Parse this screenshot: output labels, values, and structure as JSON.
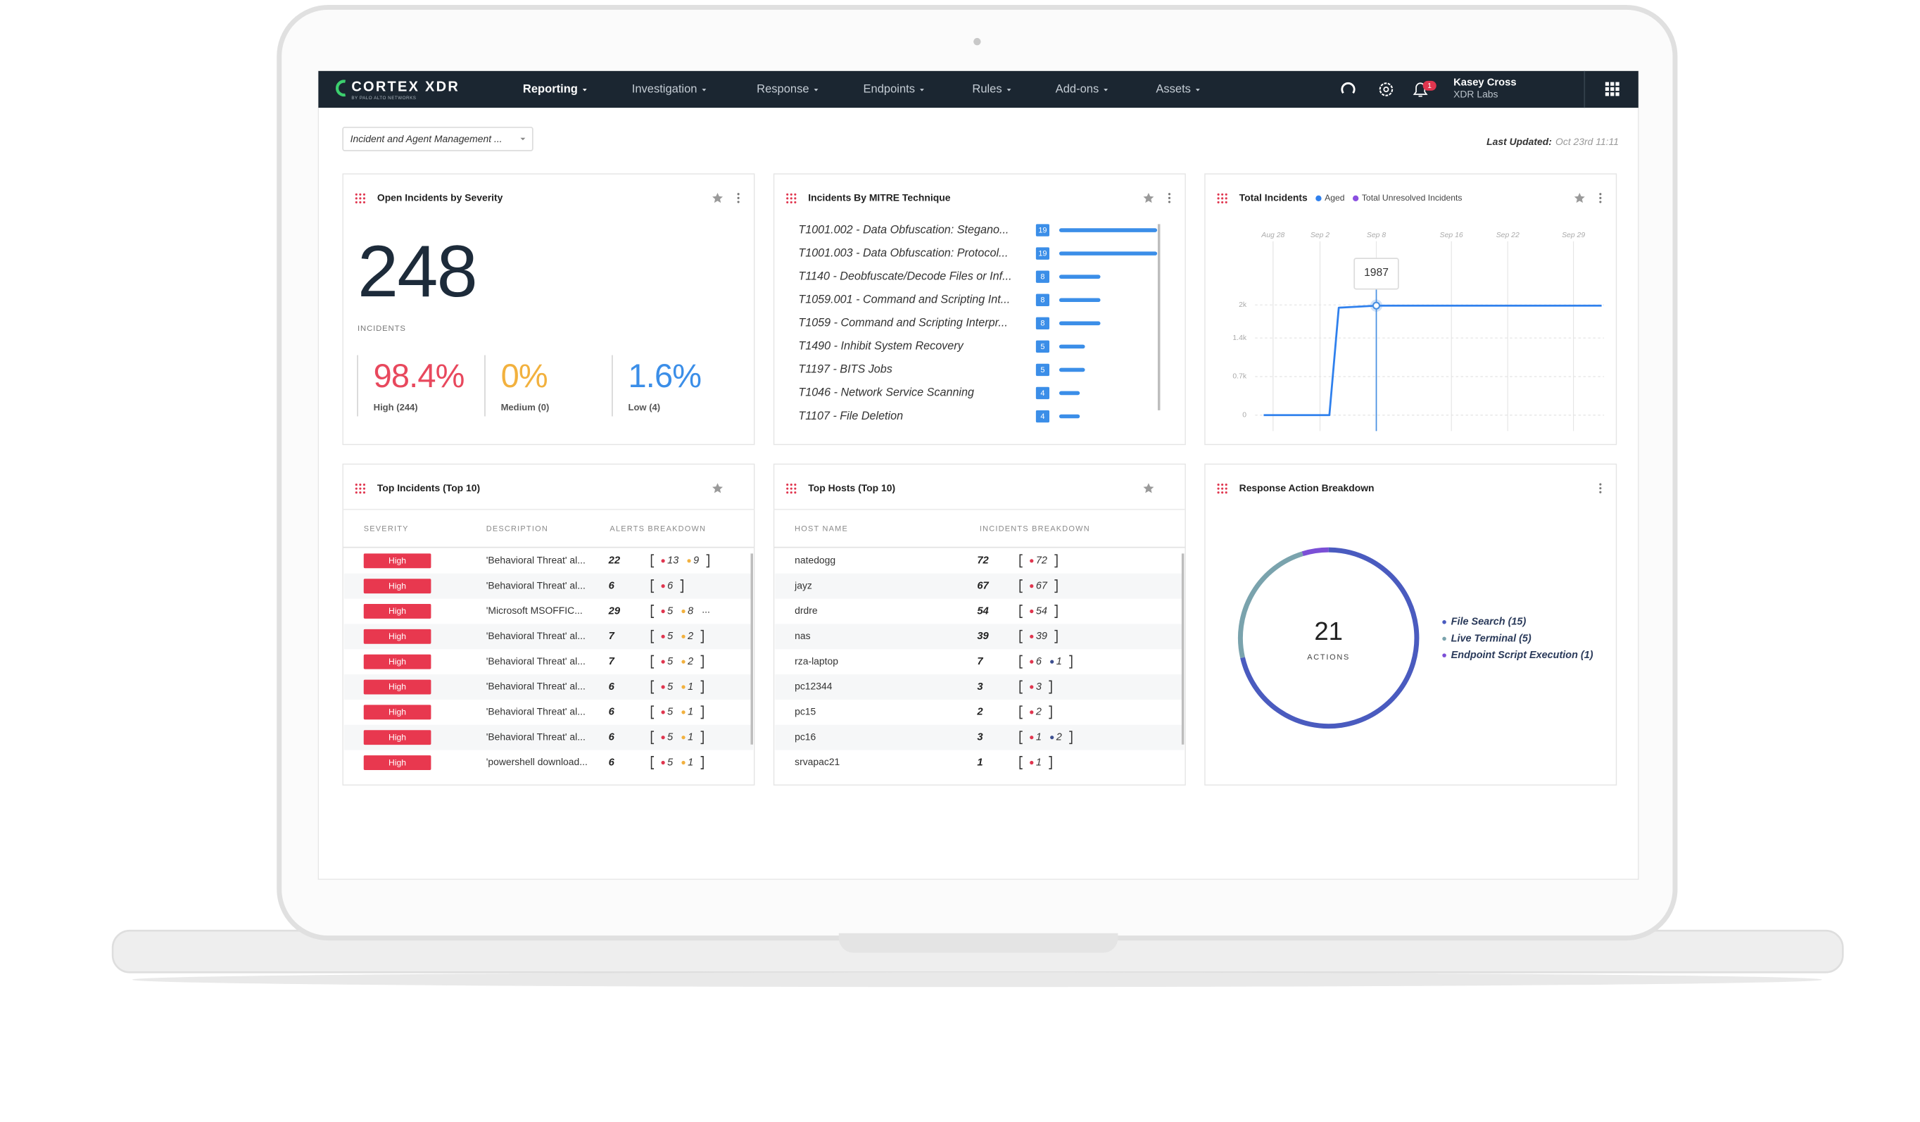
{
  "nav": {
    "brand": "CORTEX XDR",
    "brand_sub": "BY PALO ALTO NETWORKS",
    "menu": [
      "Reporting",
      "Investigation",
      "Response",
      "Endpoints",
      "Rules",
      "Add-ons",
      "Assets"
    ],
    "notifications": 1,
    "user": "Kasey Cross",
    "org": "XDR Labs"
  },
  "toolbar": {
    "dashboard": "Incident and Agent Management ...",
    "last_updated_label": "Last Updated:",
    "last_updated": "Oct 23rd 11:11"
  },
  "widgets": {
    "severity": {
      "title": "Open Incidents by Severity",
      "total": 248,
      "total_label": "INCIDENTS",
      "breakdown": [
        {
          "value": "98.4%",
          "label": "High (244)",
          "color": "#e8485d"
        },
        {
          "value": "0%",
          "label": "Medium (0)",
          "color": "#f2b13e"
        },
        {
          "value": "1.6%",
          "label": "Low (4)",
          "color": "#3b8ee8"
        }
      ]
    },
    "mitre": {
      "title": "Incidents By MITRE Technique",
      "chart_data": {
        "type": "bar",
        "color": "#3b8ee8",
        "categories": [
          "T1001.002 - Data Obfuscation: Stegano...",
          "T1001.003 - Data Obfuscation: Protocol...",
          "T1140 - Deobfuscate/Decode Files or Inf...",
          "T1059.001 - Command and Scripting Int...",
          "T1059 - Command and Scripting Interpr...",
          "T1490 - Inhibit System Recovery",
          "T1197 - BITS Jobs",
          "T1046 - Network Service Scanning",
          "T1107 - File Deletion"
        ],
        "values": [
          19,
          19,
          8,
          8,
          8,
          5,
          5,
          4,
          4
        ]
      }
    },
    "total_incidents": {
      "title": "Total Incidents",
      "chart_data": {
        "type": "line",
        "x": [
          "Aug 27",
          "Sep 3",
          "Sep 4",
          "Sep 8",
          "Oct 2"
        ],
        "series": [
          {
            "name": "Aged",
            "color": "#2f80ed",
            "values": [
              0,
              0,
              1950,
              1987,
              1987
            ]
          },
          {
            "name": "Total Unresolved Incidents",
            "color": "#8a4fe0",
            "values": [
              null,
              null,
              null,
              null,
              null
            ]
          }
        ],
        "xlim": [
          "Aug 27",
          "Oct 2"
        ],
        "xticks": [
          "Aug 28",
          "Sep 2",
          "Sep 8",
          "Sep 16",
          "Sep 22",
          "Sep 29"
        ],
        "ylim": [
          0,
          3000
        ],
        "yticks": [
          0,
          {
            "value": 700,
            "label": "0.7k"
          },
          {
            "value": 1400,
            "label": "1.4k"
          },
          {
            "value": 2000,
            "label": "2k"
          }
        ],
        "grid": true,
        "annotation": {
          "x": "Sep 8",
          "value": 1987
        }
      }
    },
    "top_incidents": {
      "title": "Top Incidents (Top 10)",
      "columns": [
        "SEVERITY",
        "DESCRIPTION",
        "ALERTS BREAKDOWN"
      ],
      "rows": [
        {
          "severity": "High",
          "description": "'Behavioral Threat' al...",
          "alerts": 22,
          "breakdown": [
            {
              "n": 13,
              "color": "#e0364f"
            },
            {
              "n": 9,
              "color": "#f2b13e"
            }
          ]
        },
        {
          "severity": "High",
          "description": "'Behavioral Threat' al...",
          "alerts": 6,
          "breakdown": [
            {
              "n": 6,
              "color": "#e0364f"
            }
          ]
        },
        {
          "severity": "High",
          "description": "'Microsoft MSOFFIC...",
          "alerts": 29,
          "breakdown": [
            {
              "n": 5,
              "color": "#e0364f"
            },
            {
              "n": 8,
              "color": "#f2b13e"
            }
          ],
          "more": "..."
        },
        {
          "severity": "High",
          "description": "'Behavioral Threat' al...",
          "alerts": 7,
          "breakdown": [
            {
              "n": 5,
              "color": "#e0364f"
            },
            {
              "n": 2,
              "color": "#f2b13e"
            }
          ]
        },
        {
          "severity": "High",
          "description": "'Behavioral Threat' al...",
          "alerts": 7,
          "breakdown": [
            {
              "n": 5,
              "color": "#e0364f"
            },
            {
              "n": 2,
              "color": "#f2b13e"
            }
          ]
        },
        {
          "severity": "High",
          "description": "'Behavioral Threat' al...",
          "alerts": 6,
          "breakdown": [
            {
              "n": 5,
              "color": "#e0364f"
            },
            {
              "n": 1,
              "color": "#f2b13e"
            }
          ]
        },
        {
          "severity": "High",
          "description": "'Behavioral Threat' al...",
          "alerts": 6,
          "breakdown": [
            {
              "n": 5,
              "color": "#e0364f"
            },
            {
              "n": 1,
              "color": "#f2b13e"
            }
          ]
        },
        {
          "severity": "High",
          "description": "'Behavioral Threat' al...",
          "alerts": 6,
          "breakdown": [
            {
              "n": 5,
              "color": "#e0364f"
            },
            {
              "n": 1,
              "color": "#f2b13e"
            }
          ]
        },
        {
          "severity": "High",
          "description": "'powershell download...",
          "alerts": 6,
          "breakdown": [
            {
              "n": 5,
              "color": "#e0364f"
            },
            {
              "n": 1,
              "color": "#f2b13e"
            }
          ]
        }
      ]
    },
    "top_hosts": {
      "title": "Top Hosts (Top 10)",
      "columns": [
        "HOST NAME",
        "INCIDENTS BREAKDOWN"
      ],
      "rows": [
        {
          "host": "natedogg",
          "incidents": 72,
          "breakdown": [
            {
              "n": 72,
              "color": "#e0364f"
            }
          ]
        },
        {
          "host": "jayz",
          "incidents": 67,
          "breakdown": [
            {
              "n": 67,
              "color": "#e0364f"
            }
          ]
        },
        {
          "host": "drdre",
          "incidents": 54,
          "breakdown": [
            {
              "n": 54,
              "color": "#e0364f"
            }
          ]
        },
        {
          "host": "nas",
          "incidents": 39,
          "breakdown": [
            {
              "n": 39,
              "color": "#e0364f"
            }
          ]
        },
        {
          "host": "rza-laptop",
          "incidents": 7,
          "breakdown": [
            {
              "n": 6,
              "color": "#e0364f"
            },
            {
              "n": 1,
              "color": "#3d4f8f"
            }
          ]
        },
        {
          "host": "pc12344",
          "incidents": 3,
          "breakdown": [
            {
              "n": 3,
              "color": "#e0364f"
            }
          ]
        },
        {
          "host": "pc15",
          "incidents": 2,
          "breakdown": [
            {
              "n": 2,
              "color": "#e0364f"
            }
          ]
        },
        {
          "host": "pc16",
          "incidents": 3,
          "breakdown": [
            {
              "n": 1,
              "color": "#e0364f"
            },
            {
              "n": 2,
              "color": "#3d4f8f"
            }
          ]
        },
        {
          "host": "srvapac21",
          "incidents": 1,
          "breakdown": [
            {
              "n": 1,
              "color": "#e0364f"
            }
          ]
        }
      ]
    },
    "response": {
      "title": "Response Action Breakdown",
      "chart_data": {
        "type": "pie",
        "total": 21,
        "total_label": "ACTIONS",
        "labels": [
          "File Search (15)",
          "Live Terminal (5)",
          "Endpoint Script Execution (1)"
        ],
        "values": [
          15,
          5,
          1
        ],
        "colors": [
          "#4a5bbf",
          "#7aa3ad",
          "#7b4fd6"
        ]
      }
    }
  }
}
